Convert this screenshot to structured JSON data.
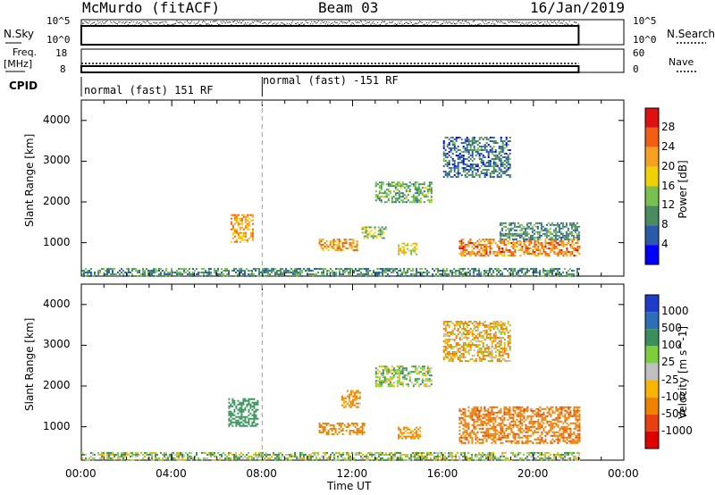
{
  "header": {
    "station": "McMurdo (fitACF)",
    "beam": "Beam 03",
    "date": "16/Jan/2019"
  },
  "nsky_panel": {
    "label": "N.Sky",
    "left_ticks": [
      "10^5",
      "10^0"
    ],
    "right_ticks": [
      "10^5",
      "10^0"
    ],
    "legend": "N.Search",
    "legend_style": "dotted"
  },
  "freq_panel": {
    "label_line1": "Freq.",
    "label_line2": "[MHz]",
    "left_ticks": [
      "18",
      "8"
    ],
    "right_ticks": [
      "60",
      "0"
    ],
    "legend": "Nave",
    "legend_style": "dotted"
  },
  "cpid": {
    "label": "CPID",
    "segments": [
      {
        "start_hour": 0,
        "text": "normal (fast) 151 RF"
      },
      {
        "start_hour": 8,
        "text": "normal (fast) -151 RF"
      }
    ]
  },
  "time_axis": {
    "title": "Time UT",
    "range_hours": [
      0,
      24
    ],
    "ticks": [
      "00:00",
      "04:00",
      "08:00",
      "12:00",
      "16:00",
      "20:00",
      "00:00"
    ],
    "data_end_hour": 22
  },
  "colors": {
    "power_scale": [
      "#0000ff",
      "#2a5aa8",
      "#4a8c5e",
      "#78c050",
      "#f0d000",
      "#f8a020",
      "#f06010",
      "#e01010"
    ],
    "velocity_scale": [
      "#1e3cc8",
      "#2c6eb8",
      "#3a8f5a",
      "#7ccf3a",
      "#c0c0c0",
      "#f8b400",
      "#f08000",
      "#e84010",
      "#e00000"
    ]
  },
  "chart_data": [
    {
      "type": "heatmap",
      "title": "Power",
      "xlabel": "Time UT",
      "ylabel": "Slant Range [km]",
      "x_range_hours": [
        0,
        24
      ],
      "y_range_km": [
        180,
        4500
      ],
      "yticks": [
        "1000",
        "2000",
        "3000",
        "4000"
      ],
      "colorbar": {
        "label": "Power [dB]",
        "ticks": [
          "4",
          "8",
          "12",
          "16",
          "20",
          "24",
          "28"
        ],
        "range": [
          0,
          30
        ]
      },
      "echo_regions": [
        {
          "t_start": 0.0,
          "t_end": 22.0,
          "r_min": 180,
          "r_max": 380,
          "value": 10
        },
        {
          "t_start": 6.6,
          "t_end": 7.6,
          "r_min": 1000,
          "r_max": 1700,
          "value": 22
        },
        {
          "t_start": 10.5,
          "t_end": 12.2,
          "r_min": 800,
          "r_max": 1100,
          "value": 22
        },
        {
          "t_start": 12.4,
          "t_end": 13.5,
          "r_min": 1100,
          "r_max": 1400,
          "value": 14
        },
        {
          "t_start": 14.0,
          "t_end": 14.8,
          "r_min": 700,
          "r_max": 1000,
          "value": 18
        },
        {
          "t_start": 16.7,
          "t_end": 22.0,
          "r_min": 700,
          "r_max": 1100,
          "value": 24
        },
        {
          "t_start": 18.5,
          "t_end": 22.0,
          "r_min": 1100,
          "r_max": 1500,
          "value": 10
        },
        {
          "t_start": 13.0,
          "t_end": 15.5,
          "r_min": 2000,
          "r_max": 2500,
          "value": 12
        },
        {
          "t_start": 16.0,
          "t_end": 19.0,
          "r_min": 2600,
          "r_max": 3600,
          "value": 8
        }
      ]
    },
    {
      "type": "heatmap",
      "title": "Velocity",
      "xlabel": "Time UT",
      "ylabel": "Slant Range [km]",
      "x_range_hours": [
        0,
        24
      ],
      "y_range_km": [
        180,
        4500
      ],
      "yticks": [
        "1000",
        "2000",
        "3000",
        "4000"
      ],
      "colorbar": {
        "label": "Velocity [m s^-1]",
        "ticks": [
          "1000",
          "500",
          "100",
          "25",
          "-25",
          "-100",
          "-500",
          "-1000"
        ]
      },
      "echo_regions": [
        {
          "t_start": 0.0,
          "t_end": 22.0,
          "r_min": 180,
          "r_max": 380,
          "value": 50
        },
        {
          "t_start": 6.5,
          "t_end": 7.8,
          "r_min": 1000,
          "r_max": 1700,
          "value": 300
        },
        {
          "t_start": 10.5,
          "t_end": 12.5,
          "r_min": 800,
          "r_max": 1100,
          "value": -300
        },
        {
          "t_start": 11.5,
          "t_end": 12.3,
          "r_min": 1500,
          "r_max": 1900,
          "value": -150
        },
        {
          "t_start": 14.0,
          "t_end": 15.0,
          "r_min": 700,
          "r_max": 1000,
          "value": -200
        },
        {
          "t_start": 16.7,
          "t_end": 22.0,
          "r_min": 600,
          "r_max": 1500,
          "value": -400
        },
        {
          "t_start": 13.0,
          "t_end": 15.5,
          "r_min": 2000,
          "r_max": 2500,
          "value": 60
        },
        {
          "t_start": 16.0,
          "t_end": 19.0,
          "r_min": 2600,
          "r_max": 3600,
          "value": -80
        }
      ]
    }
  ]
}
